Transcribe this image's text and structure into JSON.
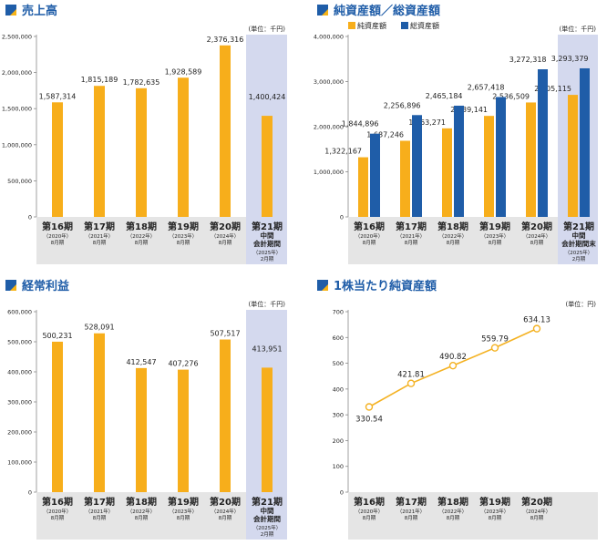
{
  "colors": {
    "bar_orange": "#F7AE1B",
    "bar_blue": "#1F5DA8",
    "highlight_bg": "#D4D9EE",
    "axis_band": "#E5E5E5",
    "line_gold": "#F4B223",
    "title_blue": "#1F5DA8",
    "accent_icon_blue": "#1F5DA8",
    "accent_icon_yellow": "#F7B316",
    "text": "#222222"
  },
  "chart_data": [
    {
      "id": "sales",
      "type": "bar",
      "title": "売上高",
      "unit": "(単位：千円)",
      "yticks": [
        "0",
        "500,000",
        "1,000,000",
        "1,500,000",
        "2,000,000",
        "2,500,000"
      ],
      "ylim": [
        0,
        2500000
      ],
      "categories": [
        {
          "label": "第16期",
          "sub": [
            "（2020年）",
            "8月期"
          ]
        },
        {
          "label": "第17期",
          "sub": [
            "（2021年）",
            "8月期"
          ]
        },
        {
          "label": "第18期",
          "sub": [
            "（2022年）",
            "8月期"
          ]
        },
        {
          "label": "第19期",
          "sub": [
            "（2023年）",
            "8月期"
          ]
        },
        {
          "label": "第20期",
          "sub": [
            "（2024年）",
            "8月期"
          ]
        },
        {
          "label": "第21期",
          "sub": [
            "中間",
            "会計期間",
            "（2025年）",
            "2月期"
          ],
          "highlight": true
        }
      ],
      "series": [
        {
          "values": [
            1587314,
            1815189,
            1782635,
            1928589,
            2376316,
            1400424
          ],
          "labels": [
            "1,587,314",
            "1,815,189",
            "1,782,635",
            "1,928,589",
            "2,376,316",
            "1,400,424"
          ]
        }
      ]
    },
    {
      "id": "assets",
      "type": "bar",
      "title": "純資産額／総資産額",
      "unit": "(単位：千円)",
      "yticks": [
        "0",
        "1,000,000",
        "2,000,000",
        "3,000,000",
        "4,000,000"
      ],
      "ylim": [
        0,
        4000000
      ],
      "legend": [
        "純資産額",
        "総資産額"
      ],
      "categories": [
        {
          "label": "第16期",
          "sub": [
            "（2020年）",
            "8月期"
          ]
        },
        {
          "label": "第17期",
          "sub": [
            "（2021年）",
            "8月期"
          ]
        },
        {
          "label": "第18期",
          "sub": [
            "（2022年）",
            "8月期"
          ]
        },
        {
          "label": "第19期",
          "sub": [
            "（2023年）",
            "8月期"
          ]
        },
        {
          "label": "第20期",
          "sub": [
            "（2024年）",
            "8月期"
          ]
        },
        {
          "label": "第21期",
          "sub": [
            "中間",
            "会計期間末",
            "（2025年）",
            "2月期"
          ],
          "highlight": true
        }
      ],
      "series": [
        {
          "name": "純資産額",
          "values": [
            1322167,
            1687246,
            1963271,
            2239141,
            2536509,
            2705115
          ],
          "labels": [
            "1,322,167",
            "1,687,246",
            "1,963,271",
            "2,239,141",
            "2,536,509",
            "2,705,115"
          ]
        },
        {
          "name": "総資産額",
          "values": [
            1844896,
            2256896,
            2465184,
            2657418,
            3272318,
            3293379
          ],
          "labels": [
            "1,844,896",
            "2,256,896",
            "2,465,184",
            "2,657,418",
            "3,272,318",
            "3,293,379"
          ]
        }
      ]
    },
    {
      "id": "ordinary",
      "type": "bar",
      "title": "経常利益",
      "unit": "(単位：千円)",
      "yticks": [
        "0",
        "100,000",
        "200,000",
        "300,000",
        "400,000",
        "500,000",
        "600,000"
      ],
      "ylim": [
        0,
        600000
      ],
      "categories": [
        {
          "label": "第16期",
          "sub": [
            "（2020年）",
            "8月期"
          ]
        },
        {
          "label": "第17期",
          "sub": [
            "（2021年）",
            "8月期"
          ]
        },
        {
          "label": "第18期",
          "sub": [
            "（2022年）",
            "8月期"
          ]
        },
        {
          "label": "第19期",
          "sub": [
            "（2023年）",
            "8月期"
          ]
        },
        {
          "label": "第20期",
          "sub": [
            "（2024年）",
            "8月期"
          ]
        },
        {
          "label": "第21期",
          "sub": [
            "中間",
            "会計期間",
            "（2025年）",
            "2月期"
          ],
          "highlight": true
        }
      ],
      "series": [
        {
          "values": [
            500231,
            528091,
            412547,
            407276,
            507517,
            413951
          ],
          "labels": [
            "500,231",
            "528,091",
            "412,547",
            "407,276",
            "507,517",
            "413,951"
          ]
        }
      ]
    },
    {
      "id": "bps",
      "type": "line",
      "title": "1株当たり純資産額",
      "unit": "(単位：円)",
      "yticks": [
        "0",
        "100",
        "200",
        "300",
        "400",
        "500",
        "600",
        "700"
      ],
      "ylim": [
        0,
        700
      ],
      "categories": [
        {
          "label": "第16期",
          "sub": [
            "（2020年）",
            "8月期"
          ]
        },
        {
          "label": "第17期",
          "sub": [
            "（2021年）",
            "8月期"
          ]
        },
        {
          "label": "第18期",
          "sub": [
            "（2022年）",
            "8月期"
          ]
        },
        {
          "label": "第19期",
          "sub": [
            "（2023年）",
            "8月期"
          ]
        },
        {
          "label": "第20期",
          "sub": [
            "（2024年）",
            "8月期"
          ]
        }
      ],
      "series": [
        {
          "values": [
            330.54,
            421.81,
            490.82,
            559.79,
            634.13
          ],
          "labels": [
            "330.54",
            "421.81",
            "490.82",
            "559.79",
            "634.13"
          ]
        }
      ]
    }
  ]
}
